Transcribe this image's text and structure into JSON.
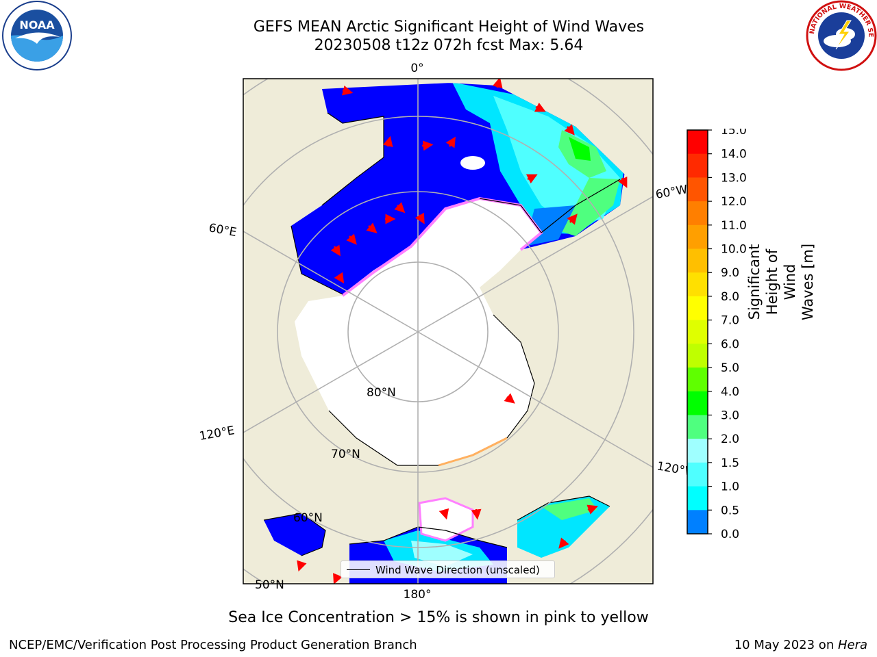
{
  "header": {
    "title_line1": "GEFS MEAN Arctic Significant Height of Wind Waves",
    "title_line2": "20230508 t12z 072h fcst   Max: 5.64"
  },
  "logos": {
    "left": "NOAA",
    "right": "NATIONAL WEATHER SERVICE"
  },
  "map": {
    "longitude_labels": [
      "0°",
      "60°E",
      "60°W",
      "120°E",
      "120°W",
      "180°"
    ],
    "latitude_labels": [
      "80°N",
      "70°N",
      "60°N",
      "50°N"
    ],
    "legend_label": "Wind Wave Direction (unscaled)",
    "colors": {
      "land": "#efecd9",
      "ice_free_ocean": "#0000ff",
      "sea_ice": "#ffffff",
      "ice_edge": "#ff80ff",
      "wave_direction_arrows": "#ff0000"
    }
  },
  "colorbar": {
    "label": "Significant Height of Wind Waves [m]",
    "ticks": [
      "15.0",
      "14.0",
      "13.0",
      "12.0",
      "11.0",
      "10.0",
      "9.0",
      "8.0",
      "7.0",
      "6.0",
      "5.0",
      "4.0",
      "3.0",
      "2.0",
      "1.5",
      "1.0",
      "0.5",
      "0.0"
    ],
    "colors_top_to_bottom": [
      "#ff0000",
      "#ff2a00",
      "#ff5500",
      "#ff7f00",
      "#ff9f00",
      "#ffbf00",
      "#ffe000",
      "#ffff00",
      "#dfff00",
      "#bfff00",
      "#5fff00",
      "#00ff00",
      "#4fff7f",
      "#9fffff",
      "#4fffff",
      "#00ffff",
      "#0080ff",
      "#0000ff"
    ]
  },
  "footer": {
    "ice_note": "Sea Ice Concentration > 15% is shown in pink to yellow",
    "left": "NCEP/EMC/Verification Post Processing Product Generation Branch",
    "right_date": "10 May 2023 on ",
    "right_machine": "Hera"
  }
}
